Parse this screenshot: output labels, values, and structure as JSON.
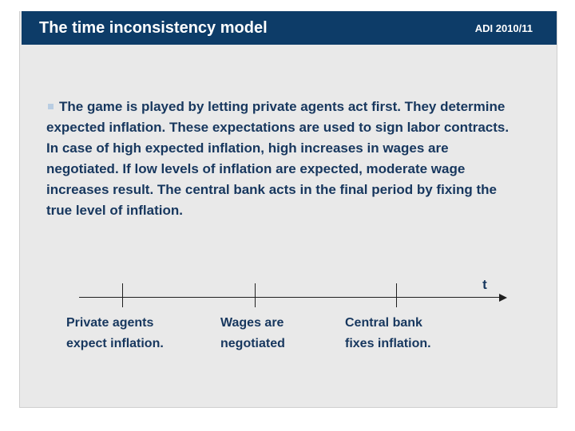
{
  "slide": {
    "header": {
      "title": "The time inconsistency model",
      "course_code": "ADI 2010/11"
    },
    "body": {
      "lines": [
        "The game is played by letting private agents act first. They determine",
        "expected inflation. These expectations are used to sign labor contracts.",
        "In case of high expected inflation, high increases in wages are",
        "negotiated. If low levels of inflation are expected, moderate wage",
        "increases result. The central bank acts in the final period by fixing the",
        "true level of inflation."
      ]
    },
    "timeline": {
      "axis_label": "t",
      "events": [
        {
          "lines": [
            "Private agents",
            "expect inflation."
          ]
        },
        {
          "lines": [
            "Wages are",
            "negotiated"
          ]
        },
        {
          "lines": [
            "Central bank",
            "fixes inflation."
          ]
        }
      ]
    }
  },
  "colors": {
    "header_bg": "#0d3c68",
    "text_navy": "#17375e",
    "bullet_blue": "#b9cde2",
    "slide_bg": "#e9e9e9",
    "page_bg": "#ffffff",
    "slide_border": "#cfcfcf",
    "axis_line": "#1f1f1f",
    "header_text": "#ffffff"
  }
}
